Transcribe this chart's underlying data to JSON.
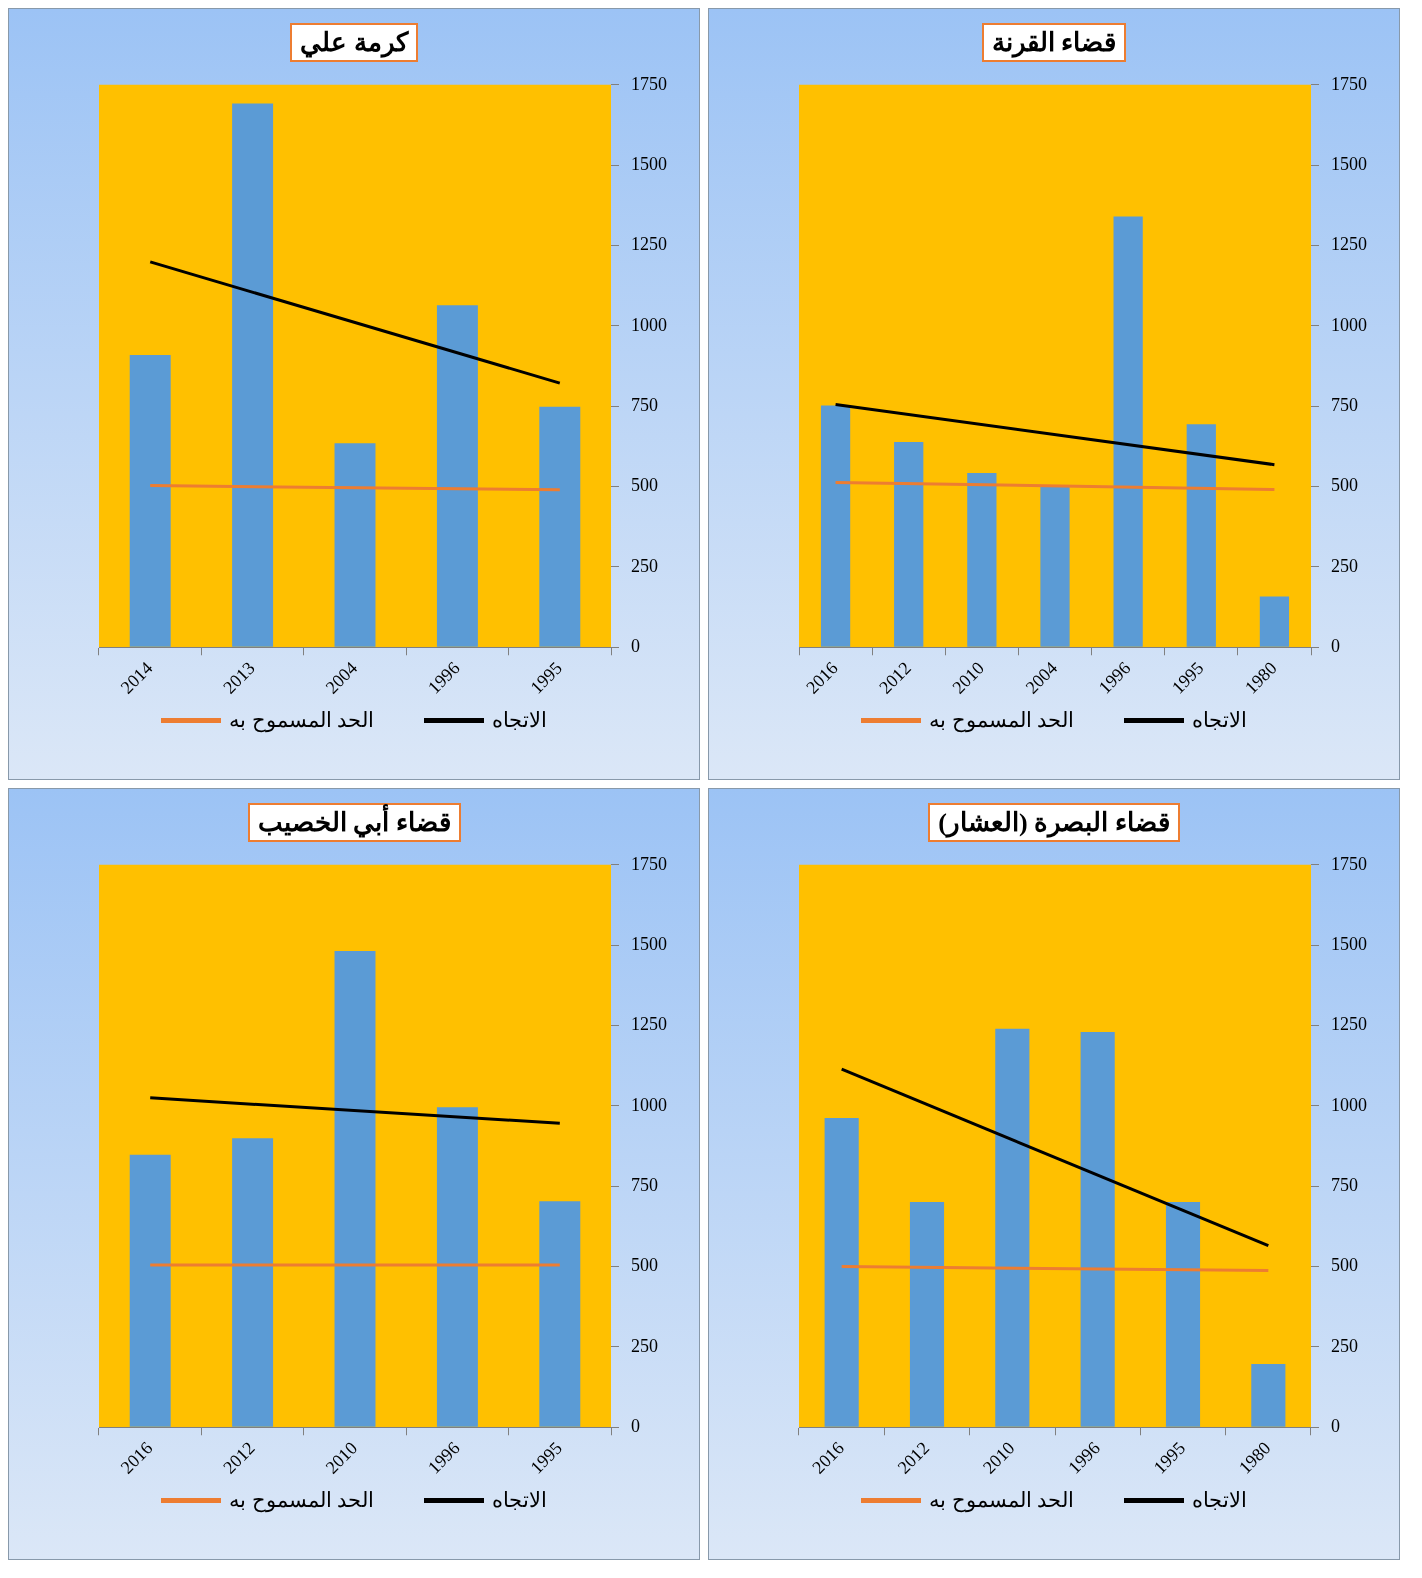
{
  "chart_data": [
    {
      "type": "bar",
      "title": "كرمة علي",
      "categories": [
        "2014",
        "2013",
        "2004",
        "1996",
        "1995"
      ],
      "ylim": [
        0,
        1750
      ],
      "yticks": [
        0,
        250,
        500,
        750,
        1000,
        1250,
        1500,
        1750
      ],
      "legend": "bottom",
      "marker": "none",
      "series": [
        {
          "type": "bar",
          "color": "#5b9bd5",
          "values": [
            909,
            1692,
            635,
            1064,
            748
          ]
        },
        {
          "type": "line",
          "name": "الاتجاه",
          "color": "#000000",
          "values": [
            1199,
            null,
            null,
            null,
            822
          ]
        },
        {
          "type": "line",
          "name": "الحد المسموح به",
          "color": "#ed7d31",
          "values": [
            503,
            null,
            null,
            null,
            490
          ]
        }
      ]
    },
    {
      "type": "bar",
      "title": "قضاء القرنة",
      "categories": [
        "2016",
        "2012",
        "2010",
        "2004",
        "1996",
        "1995",
        "1980"
      ],
      "ylim": [
        0,
        1750
      ],
      "yticks": [
        0,
        250,
        500,
        750,
        1000,
        1250,
        1500,
        1750
      ],
      "legend": "bottom",
      "marker": "none",
      "series": [
        {
          "type": "bar",
          "color": "#5b9bd5",
          "values": [
            752,
            639,
            542,
            504,
            1340,
            694,
            158
          ]
        },
        {
          "type": "line",
          "name": "الاتجاه",
          "color": "#000000",
          "values": [
            755,
            null,
            null,
            null,
            null,
            null,
            568
          ]
        },
        {
          "type": "line",
          "name": "الحد المسموح به",
          "color": "#ed7d31",
          "values": [
            513,
            null,
            null,
            null,
            null,
            null,
            491
          ]
        }
      ]
    },
    {
      "type": "bar",
      "title": "قضاء أبي الخصيب",
      "categories": [
        "2016",
        "2012",
        "2010",
        "1996",
        "1995"
      ],
      "ylim": [
        0,
        1750
      ],
      "yticks": [
        0,
        250,
        500,
        750,
        1000,
        1250,
        1500,
        1750
      ],
      "legend": "bottom",
      "marker": "none",
      "series": [
        {
          "type": "bar",
          "color": "#5b9bd5",
          "values": [
            848,
            899,
            1482,
            996,
            703
          ]
        },
        {
          "type": "line",
          "name": "الاتجاه",
          "color": "#000000",
          "values": [
            1025,
            null,
            null,
            null,
            946
          ]
        },
        {
          "type": "line",
          "name": "الحد المسموح به",
          "color": "#ed7d31",
          "values": [
            505,
            null,
            null,
            null,
            505
          ]
        }
      ]
    },
    {
      "type": "bar",
      "title": "قضاء البصرة (العشار)",
      "categories": [
        "2016",
        "2012",
        "2010",
        "1996",
        "1995",
        "1980"
      ],
      "ylim": [
        0,
        1750
      ],
      "yticks": [
        0,
        250,
        500,
        750,
        1000,
        1250,
        1500,
        1750
      ],
      "legend": "bottom",
      "marker": "none",
      "series": [
        {
          "type": "bar",
          "color": "#5b9bd5",
          "values": [
            962,
            701,
            1240,
            1230,
            701,
            197
          ]
        },
        {
          "type": "line",
          "name": "الاتجاه",
          "color": "#000000",
          "values": [
            1114,
            null,
            null,
            null,
            null,
            565
          ]
        },
        {
          "type": "line",
          "name": "الحد المسموح به",
          "color": "#ed7d31",
          "values": [
            500,
            null,
            null,
            null,
            null,
            488
          ]
        }
      ]
    }
  ]
}
